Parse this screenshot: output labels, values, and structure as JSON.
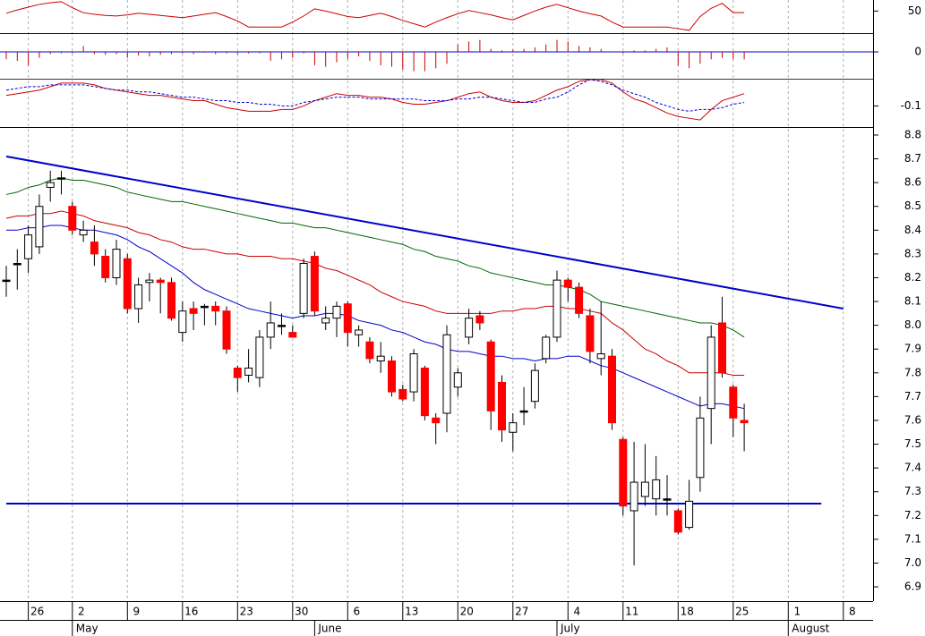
{
  "chart_data": [
    {
      "type": "line",
      "ylim": [
        10,
        70
      ],
      "yticks": [
        50
      ],
      "series": [
        {
          "color": "#cc0000",
          "values": [
            46,
            52,
            57,
            62,
            65,
            67,
            56,
            47,
            44,
            42,
            41,
            43,
            46,
            44,
            42,
            40,
            38,
            41,
            44,
            47,
            40,
            32,
            21,
            21,
            21,
            21,
            30,
            41,
            54,
            50,
            45,
            40,
            38,
            42,
            46,
            40,
            33,
            27,
            21,
            30,
            38,
            45,
            51,
            47,
            43,
            38,
            34,
            42,
            50,
            57,
            62,
            56,
            50,
            45,
            41,
            30,
            21,
            21,
            21,
            21,
            21,
            18,
            15,
            40,
            55,
            64,
            47,
            47
          ]
        }
      ]
    },
    {
      "type": "bar",
      "ylim": [
        -36,
        24
      ],
      "yticks": [
        0
      ],
      "grid": true,
      "grid_color": "#0000cc",
      "color": "#cc0000",
      "values": [
        -10,
        -12,
        -18,
        -8,
        -3,
        -2,
        -2,
        8,
        -3,
        -4,
        -3,
        -8,
        -5,
        -6,
        -4,
        -3,
        -2,
        -3,
        -1,
        -3,
        -2,
        -3,
        -2,
        -2,
        -12,
        -10,
        -8,
        -2,
        -18,
        -20,
        -14,
        -10,
        -6,
        -12,
        -18,
        -20,
        -24,
        -26,
        -26,
        -22,
        -16,
        10,
        14,
        16,
        4,
        2,
        3,
        4,
        6,
        10,
        16,
        14,
        8,
        6,
        4,
        0,
        -2,
        2,
        2,
        4,
        6,
        -18,
        -22,
        -16,
        -10,
        -8,
        -10,
        -10
      ]
    },
    {
      "type": "line",
      "ylim": [
        -0.22,
        0.05
      ],
      "yticks": [
        -0.1
      ],
      "series": [
        {
          "color": "#cc0000",
          "values": [
            -0.04,
            -0.03,
            -0.02,
            -0.01,
            0.01,
            0.03,
            0.03,
            0.03,
            0.02,
            0.0,
            -0.01,
            -0.02,
            -0.03,
            -0.04,
            -0.04,
            -0.05,
            -0.06,
            -0.07,
            -0.07,
            -0.09,
            -0.11,
            -0.12,
            -0.13,
            -0.13,
            -0.13,
            -0.12,
            -0.12,
            -0.1,
            -0.07,
            -0.05,
            -0.03,
            -0.04,
            -0.04,
            -0.05,
            -0.05,
            -0.06,
            -0.08,
            -0.09,
            -0.09,
            -0.08,
            -0.07,
            -0.05,
            -0.03,
            -0.02,
            -0.05,
            -0.07,
            -0.08,
            -0.08,
            -0.07,
            -0.04,
            -0.01,
            0.01,
            0.04,
            0.05,
            0.05,
            0.03,
            -0.02,
            -0.06,
            -0.08,
            -0.11,
            -0.14,
            -0.16,
            -0.17,
            -0.18,
            -0.12,
            -0.07,
            -0.05,
            -0.03
          ]
        },
        {
          "color": "#0000cc",
          "dash": true,
          "values": [
            -0.01,
            0.0,
            0.01,
            0.01,
            0.02,
            0.02,
            0.02,
            0.02,
            0.01,
            0.0,
            -0.01,
            -0.01,
            -0.02,
            -0.02,
            -0.03,
            -0.04,
            -0.05,
            -0.05,
            -0.06,
            -0.07,
            -0.07,
            -0.08,
            -0.08,
            -0.09,
            -0.09,
            -0.1,
            -0.1,
            -0.08,
            -0.07,
            -0.06,
            -0.05,
            -0.05,
            -0.05,
            -0.06,
            -0.06,
            -0.06,
            -0.06,
            -0.06,
            -0.07,
            -0.07,
            -0.07,
            -0.06,
            -0.06,
            -0.05,
            -0.05,
            -0.06,
            -0.07,
            -0.08,
            -0.08,
            -0.06,
            -0.05,
            -0.02,
            0.02,
            0.05,
            0.04,
            0.02,
            -0.01,
            -0.03,
            -0.05,
            -0.08,
            -0.1,
            -0.12,
            -0.13,
            -0.12,
            -0.12,
            -0.11,
            -0.09,
            -0.08
          ]
        }
      ]
    },
    {
      "type": "candlestick",
      "ylim": [
        6.84,
        8.83
      ],
      "yticks": [
        6.9,
        {
          "value": 7,
          "label": "7.0"
        },
        7.1,
        7.2,
        7.3,
        7.4,
        7.5,
        7.6,
        7.7,
        7.8,
        7.9,
        {
          "value": 8,
          "label": "8.0"
        },
        8.1,
        8.2,
        8.3,
        8.4,
        8.5,
        8.6,
        8.7,
        8.8
      ],
      "up_color": "#ffffff",
      "down_color": "#ff0000",
      "flat_color": "#000000",
      "categories": [
        null,
        null,
        "26",
        null,
        null,
        null,
        "2",
        null,
        null,
        null,
        null,
        "9",
        null,
        null,
        null,
        null,
        "16",
        null,
        null,
        null,
        null,
        "23",
        null,
        null,
        null,
        null,
        "30",
        null,
        null,
        null,
        null,
        "6",
        null,
        null,
        null,
        null,
        "13",
        null,
        null,
        null,
        null,
        "20",
        null,
        null,
        null,
        null,
        "27",
        null,
        null,
        null,
        null,
        "4",
        null,
        null,
        null,
        null,
        "11",
        null,
        null,
        null,
        null,
        "18",
        null,
        null,
        null,
        null,
        "25",
        null,
        null,
        null,
        null,
        "1",
        null,
        null,
        null,
        null,
        "8",
        null
      ],
      "month_labels": [
        null,
        null,
        null,
        null,
        null,
        null,
        "May",
        null,
        null,
        null,
        null,
        null,
        null,
        null,
        null,
        null,
        null,
        null,
        null,
        null,
        null,
        null,
        null,
        null,
        null,
        null,
        null,
        null,
        "June",
        null,
        null,
        null,
        null,
        null,
        null,
        null,
        null,
        null,
        null,
        null,
        null,
        null,
        null,
        null,
        null,
        null,
        null,
        null,
        null,
        null,
        "July",
        null,
        null,
        null,
        null,
        null,
        null,
        null,
        null,
        null,
        null,
        null,
        null,
        null,
        null,
        null,
        null,
        null,
        null,
        null,
        null,
        "August",
        null,
        null,
        null,
        null,
        null,
        null
      ],
      "open": [
        8.19,
        8.26,
        8.28,
        8.33,
        8.58,
        8.62,
        8.5,
        8.38,
        8.35,
        8.29,
        8.2,
        8.28,
        8.07,
        8.18,
        8.19,
        8.18,
        7.97,
        8.07,
        8.08,
        8.08,
        8.06,
        7.82,
        7.79,
        7.78,
        7.95,
        8.0,
        7.97,
        8.05,
        8.29,
        8.01,
        8.03,
        8.09,
        7.96,
        7.93,
        7.85,
        7.85,
        7.73,
        7.72,
        7.82,
        7.61,
        7.63,
        7.74,
        7.95,
        8.04,
        7.93,
        7.76,
        7.55,
        7.64,
        7.68,
        7.86,
        7.95,
        8.19,
        8.16,
        8.04,
        7.86,
        7.87,
        7.52,
        7.22,
        7.28,
        7.27,
        7.27,
        7.22,
        7.15,
        7.36,
        7.65,
        8.01,
        7.74,
        7.6,
        null,
        null,
        null,
        null,
        null,
        null,
        null,
        null,
        null,
        null
      ],
      "high": [
        8.25,
        8.32,
        8.42,
        8.55,
        8.65,
        8.65,
        8.52,
        8.44,
        8.42,
        8.32,
        8.36,
        8.3,
        8.2,
        8.22,
        8.2,
        8.2,
        8.1,
        8.1,
        8.09,
        8.1,
        8.08,
        7.83,
        7.9,
        7.98,
        8.1,
        8.05,
        8.0,
        8.28,
        8.31,
        8.08,
        8.1,
        8.1,
        8.0,
        7.95,
        7.93,
        7.87,
        7.75,
        7.9,
        7.83,
        7.63,
        8.0,
        7.82,
        8.07,
        8.06,
        7.94,
        7.79,
        7.63,
        7.74,
        7.84,
        7.96,
        8.23,
        8.2,
        8.18,
        8.07,
        8.1,
        7.9,
        7.53,
        7.51,
        7.5,
        7.45,
        7.37,
        7.23,
        7.35,
        7.7,
        8.0,
        8.12,
        7.75,
        7.67,
        null,
        null,
        null,
        null,
        null,
        null,
        null,
        null,
        null,
        null
      ],
      "low": [
        8.12,
        8.15,
        8.22,
        8.3,
        8.52,
        8.55,
        8.38,
        8.35,
        8.25,
        8.18,
        8.17,
        8.05,
        8.01,
        8.1,
        8.05,
        8.02,
        7.93,
        7.98,
        8.0,
        8.0,
        7.88,
        7.72,
        7.76,
        7.74,
        7.9,
        7.96,
        7.95,
        8.03,
        8.04,
        7.98,
        7.95,
        7.91,
        7.91,
        7.84,
        7.8,
        7.7,
        7.68,
        7.68,
        7.6,
        7.5,
        7.55,
        7.7,
        7.92,
        7.98,
        7.56,
        7.51,
        7.47,
        7.58,
        7.65,
        7.84,
        7.93,
        8.1,
        8.03,
        7.84,
        7.79,
        7.56,
        7.2,
        6.99,
        7.24,
        7.2,
        7.2,
        7.12,
        7.14,
        7.3,
        7.5,
        7.78,
        7.53,
        7.47,
        null,
        null,
        null,
        null,
        null,
        null,
        null,
        null,
        null,
        null
      ],
      "close": [
        8.19,
        8.26,
        8.38,
        8.5,
        8.6,
        8.62,
        8.4,
        8.4,
        8.3,
        8.2,
        8.32,
        8.07,
        8.17,
        8.19,
        8.18,
        8.03,
        8.06,
        8.05,
        8.08,
        8.06,
        7.9,
        7.78,
        7.82,
        7.95,
        8.01,
        8.0,
        7.95,
        8.26,
        8.06,
        8.03,
        8.08,
        7.97,
        7.98,
        7.86,
        7.87,
        7.72,
        7.69,
        7.88,
        7.62,
        7.59,
        7.96,
        7.8,
        8.03,
        8.01,
        7.64,
        7.56,
        7.59,
        7.64,
        7.81,
        7.95,
        8.19,
        8.16,
        8.05,
        7.89,
        7.88,
        7.59,
        7.24,
        7.34,
        7.34,
        7.35,
        7.27,
        7.13,
        7.26,
        7.61,
        7.95,
        7.8,
        7.61,
        7.59,
        null,
        null,
        null,
        null,
        null,
        null,
        null,
        null,
        null,
        null
      ],
      "series": [
        {
          "color": "#006600",
          "values": [
            8.55,
            8.56,
            8.58,
            8.59,
            8.61,
            8.62,
            8.61,
            8.61,
            8.6,
            8.59,
            8.58,
            8.56,
            8.55,
            8.54,
            8.53,
            8.52,
            8.52,
            8.51,
            8.5,
            8.49,
            8.48,
            8.47,
            8.46,
            8.45,
            8.44,
            8.43,
            8.43,
            8.42,
            8.41,
            8.41,
            8.4,
            8.39,
            8.38,
            8.37,
            8.36,
            8.35,
            8.34,
            8.32,
            8.31,
            8.29,
            8.28,
            8.27,
            8.25,
            8.24,
            8.22,
            8.21,
            8.2,
            8.19,
            8.18,
            8.17,
            8.17,
            8.16,
            8.15,
            8.13,
            8.1,
            8.09,
            8.08,
            8.07,
            8.06,
            8.05,
            8.04,
            8.03,
            8.02,
            8.01,
            8.01,
            8.0,
            7.98,
            7.95,
            null,
            null,
            null,
            null,
            null,
            null,
            null,
            null,
            null,
            null
          ]
        },
        {
          "color": "#cc0000",
          "values": [
            8.45,
            8.46,
            8.46,
            8.47,
            8.47,
            8.48,
            8.47,
            8.46,
            8.44,
            8.43,
            8.42,
            8.41,
            8.39,
            8.38,
            8.36,
            8.35,
            8.33,
            8.32,
            8.32,
            8.31,
            8.3,
            8.3,
            8.29,
            8.29,
            8.29,
            8.28,
            8.28,
            8.27,
            8.26,
            8.24,
            8.23,
            8.21,
            8.19,
            8.17,
            8.14,
            8.12,
            8.1,
            8.09,
            8.08,
            8.06,
            8.05,
            8.05,
            8.05,
            8.05,
            8.05,
            8.06,
            8.06,
            8.07,
            8.07,
            8.08,
            8.08,
            8.07,
            8.07,
            8.06,
            8.05,
            8.01,
            7.98,
            7.94,
            7.9,
            7.88,
            7.85,
            7.83,
            7.8,
            7.8,
            7.8,
            7.8,
            7.79,
            7.79,
            null,
            null,
            null,
            null,
            null,
            null,
            null,
            null,
            null,
            null
          ]
        },
        {
          "color": "#0000cc",
          "values": [
            8.4,
            8.4,
            8.41,
            8.41,
            8.42,
            8.42,
            8.41,
            8.4,
            8.4,
            8.39,
            8.38,
            8.36,
            8.33,
            8.31,
            8.28,
            8.25,
            8.22,
            8.18,
            8.15,
            8.13,
            8.11,
            8.09,
            8.07,
            8.06,
            8.05,
            8.04,
            8.03,
            8.04,
            8.04,
            8.05,
            8.05,
            8.04,
            8.02,
            8.01,
            8.0,
            7.98,
            7.97,
            7.95,
            7.93,
            7.92,
            7.9,
            7.89,
            7.89,
            7.88,
            7.87,
            7.87,
            7.86,
            7.86,
            7.85,
            7.86,
            7.86,
            7.87,
            7.87,
            7.85,
            7.83,
            7.82,
            7.8,
            7.78,
            7.76,
            7.74,
            7.72,
            7.7,
            7.68,
            7.66,
            7.67,
            7.67,
            7.66,
            7.65,
            null,
            null,
            null,
            null,
            null,
            null,
            null,
            null,
            null,
            null
          ]
        }
      ],
      "trend_lines": [
        {
          "color": "#0000cc",
          "x": [
            0,
            76
          ],
          "values": [
            8.71,
            8.07
          ]
        },
        {
          "color": "#0000cc",
          "x": [
            0,
            74
          ],
          "values": [
            7.25,
            7.25
          ]
        }
      ]
    }
  ]
}
